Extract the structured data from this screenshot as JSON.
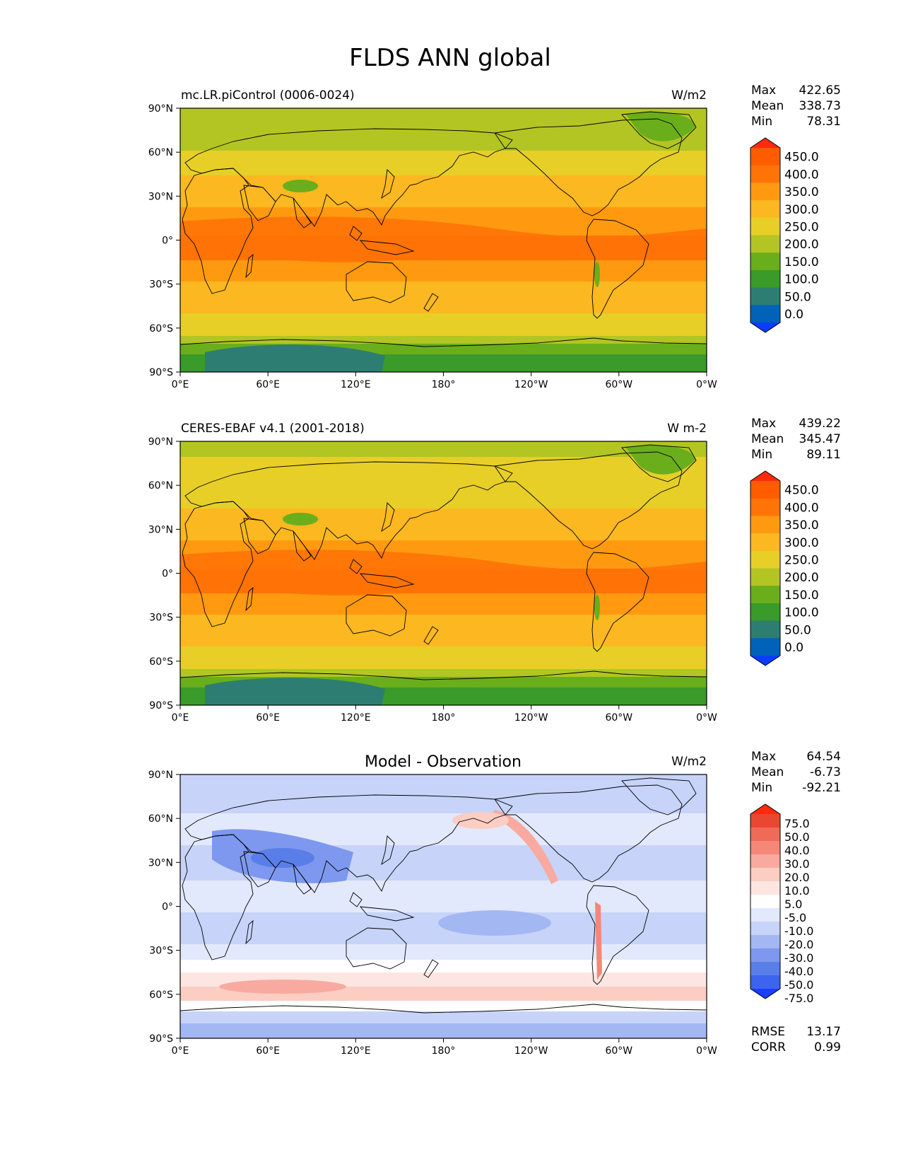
{
  "figure_title": "FLDS ANN global",
  "x_ticks": [
    "0°E",
    "60°E",
    "120°E",
    "180°",
    "120°W",
    "60°W",
    "0°W"
  ],
  "y_ticks": [
    "90°N",
    "60°N",
    "30°N",
    "0°",
    "30°S",
    "60°S",
    "90°S"
  ],
  "stat_labels": {
    "max": "Max",
    "mean": "Mean",
    "min": "Min",
    "rmse": "RMSE",
    "corr": "CORR"
  },
  "colors": {
    "abs": [
      "#0a3dff",
      "#0062b8",
      "#2e7d73",
      "#3a9a2a",
      "#6aae1c",
      "#b2c522",
      "#e7cf28",
      "#fbb820",
      "#ff9a10",
      "#ff7307",
      "#ff5c00",
      "#ff2a0d"
    ],
    "diff": [
      "#1a3dff",
      "#3c64ee",
      "#5a7ee8",
      "#7d98ee",
      "#a3b7f3",
      "#c7d3f8",
      "#e3e9fc",
      "#ffffff",
      "#fde6e1",
      "#fbcdc3",
      "#f8aaa0",
      "#f58778",
      "#f06a58",
      "#ea4733",
      "#ff2a0d"
    ],
    "coast": "#000000"
  },
  "panels": [
    {
      "title": "mc.LR.piControl (0006-0024)",
      "units": "W/m2",
      "stats": {
        "max": "422.65",
        "mean": "338.73",
        "min": "78.31"
      },
      "colorbar_labels": [
        "450.0",
        "400.0",
        "350.0",
        "300.0",
        "250.0",
        "200.0",
        "150.0",
        "100.0",
        "50.0",
        "0.0"
      ]
    },
    {
      "title": "CERES-EBAF v4.1 (2001-2018)",
      "units": "W m-2",
      "stats": {
        "max": "439.22",
        "mean": "345.47",
        "min": "89.11"
      },
      "colorbar_labels": [
        "450.0",
        "400.0",
        "350.0",
        "300.0",
        "250.0",
        "200.0",
        "150.0",
        "100.0",
        "50.0",
        "0.0"
      ]
    },
    {
      "title": "Model - Observation",
      "units": "W/m2",
      "stats": {
        "max": "64.54",
        "mean": "-6.73",
        "min": "-92.21",
        "rmse": "13.17",
        "corr": "0.99"
      },
      "colorbar_labels": [
        "75.0",
        "50.0",
        "40.0",
        "30.0",
        "20.0",
        "10.0",
        "5.0",
        "-5.0",
        "-10.0",
        "-20.0",
        "-30.0",
        "-40.0",
        "-50.0",
        "-75.0"
      ]
    }
  ]
}
